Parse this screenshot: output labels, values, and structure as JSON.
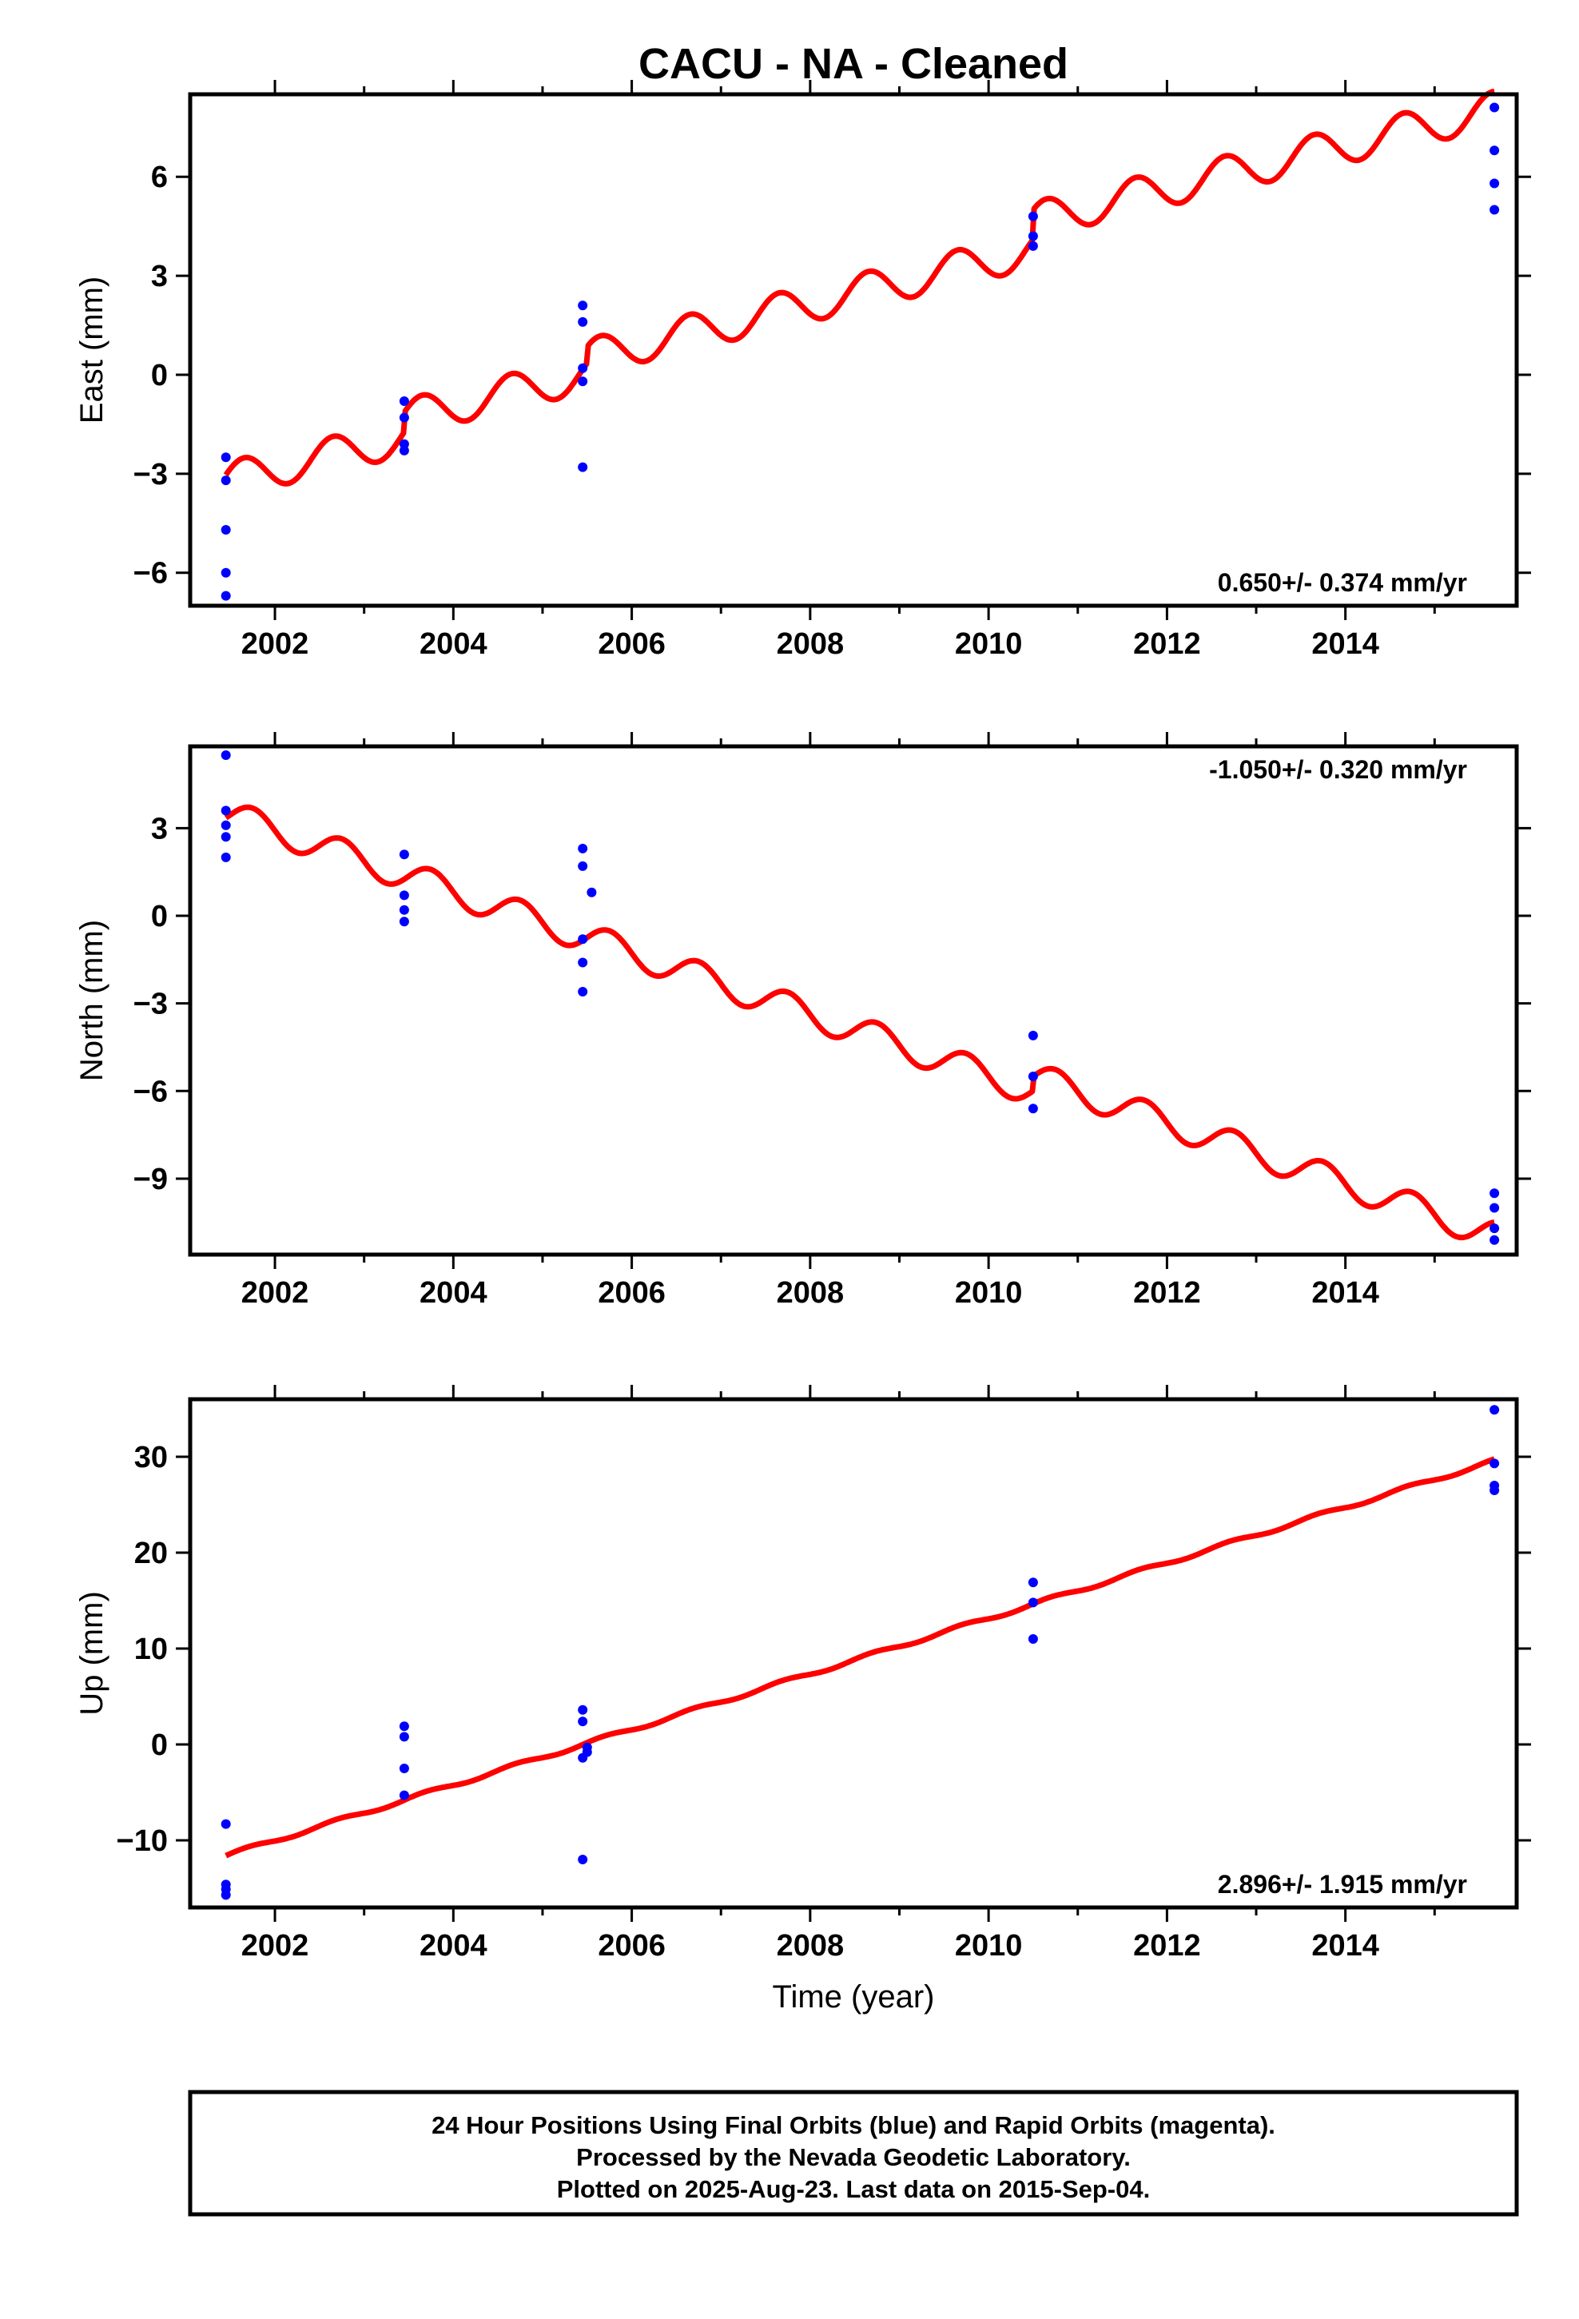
{
  "title": "CACU  - NA - Cleaned",
  "xlabel": "Time (year)",
  "footer": {
    "line1": "24 Hour Positions Using Final Orbits (blue) and Rapid Orbits (magenta).",
    "line2": "Processed by the Nevada Geodetic Laboratory.",
    "line3": "Plotted on 2025-Aug-23. Last data on 2015-Sep-04."
  },
  "colors": {
    "model": "#ff0000",
    "final_orbits": "#0000ff",
    "frame": "#000000"
  },
  "chart_data": [
    {
      "type": "scatter",
      "component": "east",
      "ylabel": "East (mm)",
      "rate_label": "0.650+/- 0.374 mm/yr",
      "rate_position": "bottom-right",
      "xlim": [
        2001.05,
        2015.92
      ],
      "ylim": [
        -7.0,
        8.5
      ],
      "xticks": [
        2002,
        2004,
        2006,
        2008,
        2010,
        2012,
        2014
      ],
      "yticks": [
        -6,
        -3,
        0,
        3,
        6
      ],
      "grid": false,
      "model": {
        "start_year": 2001.45,
        "end_year": 2015.67,
        "offset_at_2001": -3.2,
        "rate": 0.65,
        "annual_amplitude": 0.55,
        "phase": 0.3,
        "steps": [
          {
            "year": 2003.45,
            "offset": 0.6
          },
          {
            "year": 2005.5,
            "offset": 0.5
          },
          {
            "year": 2010.5,
            "offset": 0.9
          }
        ]
      },
      "points": [
        {
          "x": 2001.45,
          "y": -2.5
        },
        {
          "x": 2001.45,
          "y": -3.2
        },
        {
          "x": 2001.45,
          "y": -4.7
        },
        {
          "x": 2001.45,
          "y": -6.0
        },
        {
          "x": 2001.45,
          "y": -6.7
        },
        {
          "x": 2003.45,
          "y": -0.8
        },
        {
          "x": 2003.45,
          "y": -1.3
        },
        {
          "x": 2003.45,
          "y": -2.1
        },
        {
          "x": 2003.45,
          "y": -2.3
        },
        {
          "x": 2005.45,
          "y": 2.1
        },
        {
          "x": 2005.45,
          "y": 1.6
        },
        {
          "x": 2005.45,
          "y": 0.2
        },
        {
          "x": 2005.45,
          "y": -0.2
        },
        {
          "x": 2005.45,
          "y": -2.8
        },
        {
          "x": 2010.5,
          "y": 4.8
        },
        {
          "x": 2010.5,
          "y": 4.2
        },
        {
          "x": 2010.5,
          "y": 3.9
        },
        {
          "x": 2015.67,
          "y": 8.1
        },
        {
          "x": 2015.67,
          "y": 6.8
        },
        {
          "x": 2015.67,
          "y": 5.8
        },
        {
          "x": 2015.67,
          "y": 5.0
        }
      ]
    },
    {
      "type": "scatter",
      "component": "north",
      "ylabel": "North (mm)",
      "rate_label": "-1.050+/- 0.320 mm/yr",
      "rate_position": "top-right",
      "xlim": [
        2001.05,
        2015.92
      ],
      "ylim": [
        -11.6,
        5.8
      ],
      "xticks": [
        2002,
        2004,
        2006,
        2008,
        2010,
        2012,
        2014
      ],
      "yticks": [
        -9,
        -6,
        -3,
        0,
        3
      ],
      "grid": false,
      "model": {
        "start_year": 2001.45,
        "end_year": 2015.67,
        "offset_at_2001": 3.5,
        "rate": -1.05,
        "annual_amplitude": 0.5,
        "phase": -0.3,
        "steps": [
          {
            "year": 2003.45,
            "offset": 0.0
          },
          {
            "year": 2005.5,
            "offset": 0.0
          },
          {
            "year": 2010.5,
            "offset": 0.5
          }
        ]
      },
      "points": [
        {
          "x": 2001.45,
          "y": 5.5
        },
        {
          "x": 2001.45,
          "y": 3.6
        },
        {
          "x": 2001.45,
          "y": 3.1
        },
        {
          "x": 2001.45,
          "y": 2.7
        },
        {
          "x": 2001.45,
          "y": 2.0
        },
        {
          "x": 2003.45,
          "y": 2.1
        },
        {
          "x": 2003.45,
          "y": 0.7
        },
        {
          "x": 2003.45,
          "y": 0.2
        },
        {
          "x": 2003.45,
          "y": -0.2
        },
        {
          "x": 2005.45,
          "y": 2.3
        },
        {
          "x": 2005.45,
          "y": 1.7
        },
        {
          "x": 2005.55,
          "y": 0.8
        },
        {
          "x": 2005.45,
          "y": -0.8
        },
        {
          "x": 2005.45,
          "y": -1.6
        },
        {
          "x": 2005.45,
          "y": -2.6
        },
        {
          "x": 2010.5,
          "y": -4.1
        },
        {
          "x": 2010.5,
          "y": -5.5
        },
        {
          "x": 2010.5,
          "y": -6.6
        },
        {
          "x": 2015.67,
          "y": -9.5
        },
        {
          "x": 2015.67,
          "y": -10.0
        },
        {
          "x": 2015.67,
          "y": -10.7
        },
        {
          "x": 2015.67,
          "y": -11.1
        }
      ]
    },
    {
      "type": "scatter",
      "component": "up",
      "ylabel": "Up (mm)",
      "rate_label": "2.896+/- 1.915 mm/yr",
      "rate_position": "bottom-right",
      "xlim": [
        2001.05,
        2015.92
      ],
      "ylim": [
        -17,
        36
      ],
      "xticks": [
        2002,
        2004,
        2006,
        2008,
        2010,
        2012,
        2014
      ],
      "yticks": [
        -10,
        0,
        10,
        20,
        30
      ],
      "grid": false,
      "model": {
        "start_year": 2001.45,
        "end_year": 2015.67,
        "offset_at_2001": -11.6,
        "rate": 2.896,
        "annual_amplitude": 0.2,
        "phase": 0.0,
        "steps": []
      },
      "points": [
        {
          "x": 2001.45,
          "y": -8.3
        },
        {
          "x": 2001.45,
          "y": -14.6
        },
        {
          "x": 2001.45,
          "y": -15.1
        },
        {
          "x": 2001.45,
          "y": -15.7
        },
        {
          "x": 2003.45,
          "y": 1.9
        },
        {
          "x": 2003.45,
          "y": 0.8
        },
        {
          "x": 2003.45,
          "y": -2.5
        },
        {
          "x": 2003.45,
          "y": -5.3
        },
        {
          "x": 2005.45,
          "y": 3.6
        },
        {
          "x": 2005.45,
          "y": 2.4
        },
        {
          "x": 2005.5,
          "y": -0.3
        },
        {
          "x": 2005.5,
          "y": -0.8
        },
        {
          "x": 2005.45,
          "y": -1.4
        },
        {
          "x": 2005.45,
          "y": -12.0
        },
        {
          "x": 2010.5,
          "y": 16.9
        },
        {
          "x": 2010.5,
          "y": 14.8
        },
        {
          "x": 2010.5,
          "y": 11.0
        },
        {
          "x": 2015.67,
          "y": 34.9
        },
        {
          "x": 2015.67,
          "y": 29.3
        },
        {
          "x": 2015.67,
          "y": 27.0
        },
        {
          "x": 2015.67,
          "y": 26.5
        }
      ]
    }
  ]
}
